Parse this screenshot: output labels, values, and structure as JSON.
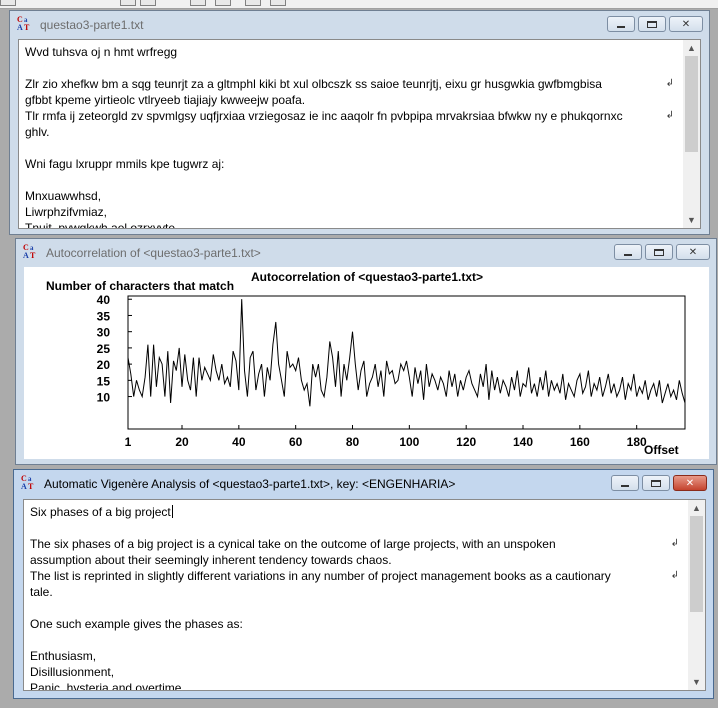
{
  "window1": {
    "title": "questao3-parte1.txt",
    "lines": [
      "Wvd tuhsva oj n hmt wrfregg",
      "",
      "Zlr zio xhefkw bm a sqg teunrjt za a gltmphl kiki bt xul olbcszk ss saioe teunrjtj, eixu gr husgwkia gwfbmgbisa",
      "gfbbt kpeme yirtieolc vtlryeeb tiajiajy kwweejw poafa.",
      "Tlr rmfa ij zeteorgld zv spvmlgsy uqfjrxiaa vrziegosaz ie inc aaqolr fn pvbpipa mrvakrsiaa bfwkw ny e phukqornxc",
      "ghlv.",
      "",
      "Wni fagu lxruppr mmils kpe tugwrz aj:",
      "",
      "Mnxuawwhsd,",
      "Liwrphzifvmiaz,",
      "Tnuit, pvwgkwh ael ozrxvyte"
    ]
  },
  "window2": {
    "title": "Autocorrelation of <questao3-parte1.txt>"
  },
  "chart_data": {
    "type": "line",
    "title": "Autocorrelation of <questao3-parte1.txt>",
    "ylabel": "Number of characters that match",
    "xlabel": "Offset",
    "xlim": [
      1,
      197
    ],
    "ylim": [
      0,
      41
    ],
    "x_ticks": [
      1,
      20,
      40,
      60,
      80,
      100,
      120,
      140,
      160,
      180
    ],
    "y_ticks": [
      10,
      15,
      20,
      25,
      30,
      35,
      40
    ],
    "x_start": 1,
    "values": [
      22,
      17,
      10,
      15,
      12,
      10,
      16,
      26,
      10,
      26,
      13,
      22,
      20,
      10,
      24,
      8,
      21,
      18,
      25,
      13,
      23,
      15,
      12,
      22,
      10,
      22,
      15,
      19,
      17,
      15,
      23,
      18,
      15,
      20,
      14,
      16,
      13,
      24,
      21,
      12,
      40,
      18,
      10,
      22,
      24,
      12,
      17,
      20,
      10,
      19,
      15,
      26,
      33,
      20,
      15,
      10,
      24,
      19,
      20,
      18,
      22,
      15,
      12,
      14,
      7,
      20,
      16,
      20,
      12,
      10,
      16,
      27,
      22,
      13,
      24,
      10,
      20,
      15,
      22,
      30,
      20,
      12,
      18,
      21,
      10,
      14,
      16,
      20,
      13,
      18,
      10,
      21,
      17,
      18,
      14,
      15,
      20,
      18,
      21,
      16,
      10,
      19,
      14,
      18,
      9,
      20,
      13,
      17,
      15,
      12,
      16,
      14,
      10,
      18,
      13,
      17,
      10,
      15,
      12,
      16,
      18,
      14,
      12,
      10,
      17,
      13,
      20,
      9,
      18,
      12,
      16,
      11,
      15,
      13,
      10,
      16,
      12,
      18,
      10,
      14,
      13,
      19,
      11,
      14,
      10,
      16,
      12,
      18,
      10,
      15,
      12,
      14,
      11,
      17,
      9,
      14,
      12,
      10,
      15,
      17,
      11,
      13,
      18,
      10,
      14,
      12,
      16,
      10,
      13,
      17,
      11,
      14,
      10,
      12,
      16,
      9,
      14,
      12,
      17,
      10,
      13,
      11,
      15,
      9,
      12,
      14,
      10,
      15,
      8,
      11,
      14,
      10,
      12,
      9,
      15,
      11,
      8
    ]
  },
  "window3": {
    "title": "Automatic Vigenère Analysis of <questao3-parte1.txt>, key: <ENGENHARIA>",
    "lines": [
      "Six phases of a big project",
      "",
      "The six phases of a big project is a cynical take on the outcome of large projects, with an unspoken",
      "assumption about their seemingly inherent tendency towards chaos.",
      "The list is reprinted in slightly different variations in any number of project management books as a cautionary",
      "tale.",
      "",
      "One such example gives the phases as:",
      "",
      "Enthusiasm,",
      "Disillusionment,",
      "Panic, hysteria and overtime"
    ]
  },
  "colors": {
    "desktop": "#ababab",
    "window_frame": "#cfdcea",
    "active_frame": "#c4d7ee",
    "close_active": "#c4432e"
  }
}
